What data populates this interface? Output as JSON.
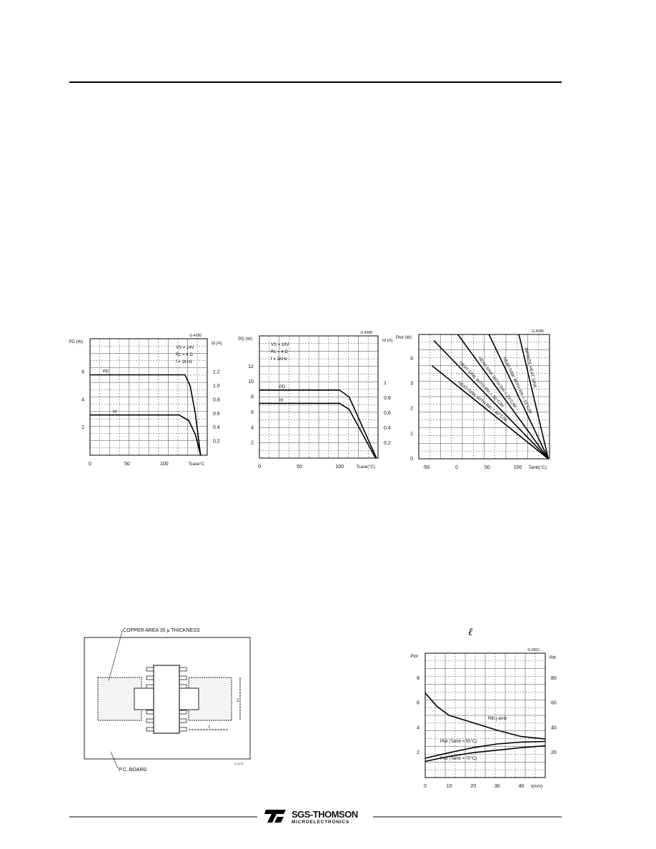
{
  "footer": {
    "brand": "SGS-THOMSON",
    "sub": "MICROELECTRONICS"
  },
  "pcb_figure": {
    "copper_label": "COPPER AREA 35 μ THICKNESS",
    "board_label": "P.C. BOARD",
    "dim_l": "ℓ",
    "dim_2": "2",
    "code": "S-1172"
  },
  "fig4_symbol": "ℓ",
  "chart_data": [
    {
      "type": "line",
      "code": "G-4286",
      "ylabel": "PD (W)",
      "y2label": "Id (A)",
      "xlabel": "Tcase°C",
      "conditions": [
        "VS = 14V",
        "RL = 4 Ω",
        "f = 1KHz"
      ],
      "xlim": [
        0,
        158
      ],
      "ylim": [
        0,
        8.4
      ],
      "y2lim": [
        0,
        1.68
      ],
      "xticks": [
        "0",
        "50",
        "100"
      ],
      "xtick_values": [
        0,
        50,
        100
      ],
      "yticks": [
        "2",
        "4",
        "6"
      ],
      "ytick_values": [
        2,
        4,
        6
      ],
      "y2ticks": [
        "0.2",
        "0.4",
        "0.6",
        "0.8",
        "1.0",
        "1.2"
      ],
      "y2tick_values": [
        0.2,
        0.4,
        0.6,
        0.8,
        1.0,
        1.2
      ],
      "grid": true,
      "series": [
        {
          "name": "PD",
          "axis": "left",
          "x": [
            0,
            128,
            135,
            142,
            149
          ],
          "y": [
            5.8,
            5.8,
            5.0,
            3.0,
            0
          ]
        },
        {
          "name": "Id",
          "axis": "right",
          "x": [
            0,
            120,
            133,
            142,
            149
          ],
          "y": [
            0.58,
            0.58,
            0.5,
            0.3,
            0
          ]
        }
      ]
    },
    {
      "type": "line",
      "code": "G-4288",
      "ylabel": "PD (W)",
      "y2label": "Id (A)",
      "xlabel": "Tcase(°C)",
      "conditions": [
        "VS = 18V",
        "RL = 4 Ω",
        "f = 1KHz"
      ],
      "xlim": [
        0,
        148
      ],
      "ylim": [
        0,
        16
      ],
      "y2lim": [
        0,
        1.63
      ],
      "xticks": [
        "0",
        "50",
        "100"
      ],
      "xtick_values": [
        0,
        50,
        100
      ],
      "yticks": [
        "2",
        "4",
        "6",
        "8",
        "10",
        "12"
      ],
      "ytick_values": [
        2,
        4,
        6,
        8,
        10,
        12
      ],
      "y2ticks": [
        "0.2",
        "0.4",
        "0.6",
        "0.8",
        "1"
      ],
      "y2tick_values": [
        0.2,
        0.4,
        0.6,
        0.8,
        1
      ],
      "grid": true,
      "series": [
        {
          "name": "PD",
          "axis": "left",
          "x": [
            0,
            100,
            112,
            146
          ],
          "y": [
            8.9,
            8.9,
            8.0,
            0
          ]
        },
        {
          "name": "Id",
          "axis": "right",
          "x": [
            0,
            100,
            112,
            145
          ],
          "y": [
            0.73,
            0.73,
            0.65,
            0
          ]
        }
      ]
    },
    {
      "type": "line",
      "code": "G-4285",
      "ylabel": "Ptot (W)",
      "xlabel": "Tamb(°C)",
      "xlim": [
        -62,
        152
      ],
      "ylim": [
        0,
        4.95
      ],
      "xticks": [
        "-50",
        "0",
        "50",
        "100"
      ],
      "xtick_values": [
        -50,
        0,
        50,
        100
      ],
      "yticks": [
        "0",
        "1",
        "2",
        "3",
        "4"
      ],
      "ytick_values": [
        0,
        1,
        2,
        3,
        4
      ],
      "grid": true,
      "series": [
        {
          "name": "INFINITE HEAT SINK",
          "x": [
            102,
            150
          ],
          "y": [
            4.95,
            0
          ]
        },
        {
          "name": "HEAT-SINK WITH Rth = 10°C/W",
          "x": [
            53,
            150
          ],
          "y": [
            4.95,
            0
          ]
        },
        {
          "name": "HEAT-SINK WITH Rth = 20°C/W",
          "x": [
            2,
            150
          ],
          "y": [
            4.95,
            0
          ]
        },
        {
          "name": "HEAT-SINK WITH Rth = 30°C/W",
          "x": [
            -37,
            150
          ],
          "y": [
            4.7,
            0
          ]
        },
        {
          "name": "HEAT-SINK WITH Rth = 40°C/W",
          "x": [
            -40,
            150
          ],
          "y": [
            3.7,
            0
          ]
        }
      ]
    },
    {
      "type": "line",
      "code": "G-0952",
      "ylabel": "Ptot",
      "y2label": "Rth",
      "xlabel": "ℓ(mm)",
      "xlim": [
        0,
        50
      ],
      "ylim": [
        0,
        10
      ],
      "y2lim": [
        0,
        100
      ],
      "xticks": [
        "0",
        "10",
        "20",
        "30",
        "40"
      ],
      "xtick_values": [
        0,
        10,
        20,
        30,
        40
      ],
      "yticks": [
        "2",
        "4",
        "6",
        "8"
      ],
      "ytick_values": [
        2,
        4,
        6,
        8
      ],
      "y2ticks": [
        "20",
        "40",
        "60",
        "80"
      ],
      "y2tick_values": [
        20,
        40,
        60,
        80
      ],
      "grid": true,
      "series": [
        {
          "name": "Rth j-amb",
          "axis": "right",
          "x": [
            0,
            5,
            10,
            20,
            30,
            40,
            50
          ],
          "y": [
            68,
            57,
            50,
            44,
            38,
            33,
            31
          ]
        },
        {
          "name": "Ptot (Tamb = 55°C)",
          "axis": "left",
          "x": [
            0,
            10,
            20,
            30,
            40,
            50
          ],
          "y": [
            1.55,
            2.0,
            2.4,
            2.7,
            2.85,
            2.9
          ]
        },
        {
          "name": "Ptot (Tamb = 70°C)",
          "axis": "left",
          "x": [
            0,
            10,
            20,
            30,
            40,
            50
          ],
          "y": [
            1.3,
            1.7,
            2.0,
            2.2,
            2.4,
            2.55
          ]
        }
      ]
    }
  ]
}
